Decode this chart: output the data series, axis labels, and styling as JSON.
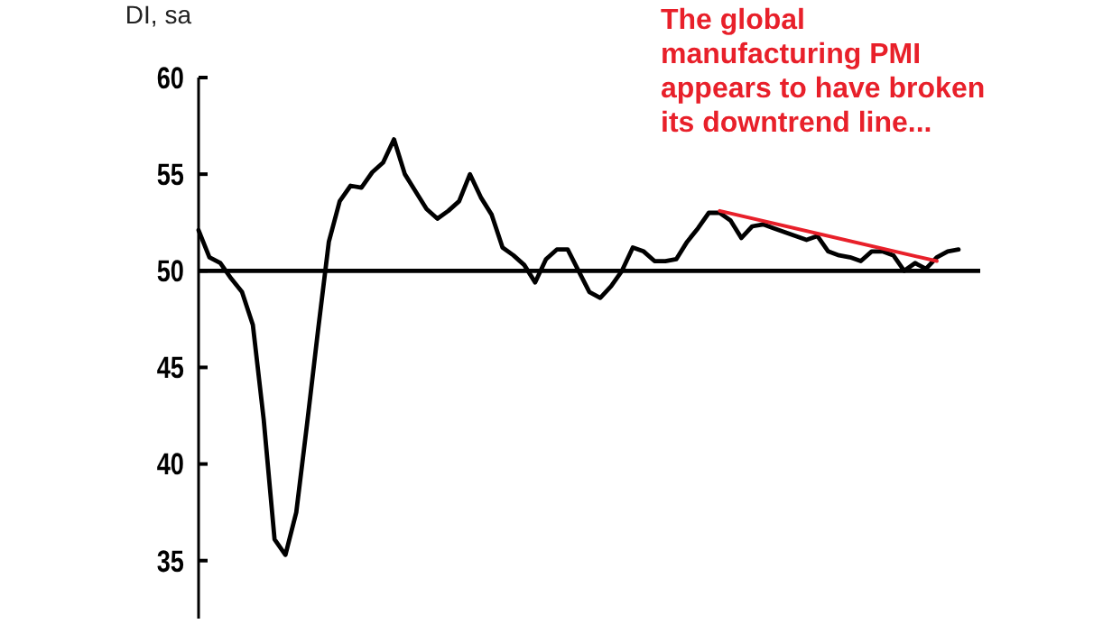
{
  "chart_data": {
    "type": "line",
    "ylabel": "DI, sa",
    "categories": [
      null,
      null,
      null,
      null,
      null,
      null,
      null,
      null,
      null,
      null,
      null,
      null,
      null,
      null,
      null,
      null,
      null,
      null,
      null,
      null,
      null,
      null,
      null,
      null,
      null,
      null,
      null,
      null,
      null,
      null,
      null,
      null,
      null,
      null,
      null,
      null,
      null,
      null,
      null,
      null,
      null,
      null,
      null,
      null,
      null,
      null,
      null,
      null,
      null,
      null,
      null,
      null,
      null,
      null,
      null,
      null,
      null,
      null,
      null,
      null,
      null,
      null,
      null,
      null,
      null,
      null,
      null,
      null,
      null,
      null,
      null,
      null,
      null
    ],
    "series": [
      {
        "color": "#000000",
        "values": [
          52.1,
          50.7,
          50.4,
          49.6,
          48.9,
          47.2,
          42.3,
          36.1,
          35.3,
          37.5,
          42.1,
          46.9,
          51.5,
          53.6,
          54.4,
          54.3,
          55.1,
          55.6,
          56.8,
          55,
          54.1,
          53.2,
          52.7,
          53.1,
          53.6,
          55,
          53.8,
          52.9,
          51.2,
          50.8,
          50.3,
          49.4,
          50.6,
          51.1,
          51.1,
          50,
          48.9,
          48.6,
          49.2,
          50,
          51.2,
          51,
          50.5,
          50.5,
          50.6,
          51.5,
          52.2,
          53,
          53,
          52.6,
          51.7,
          52.3,
          52.4,
          52.2,
          52,
          51.8,
          51.6,
          51.8,
          51,
          50.8,
          50.7,
          50.5,
          51,
          51,
          50.8,
          50,
          50.4,
          50.1,
          50.7,
          51,
          51.1,
          null,
          null
        ]
      },
      {
        "type": "line",
        "color": "#e8202a",
        "values": [
          null,
          null,
          null,
          null,
          null,
          null,
          null,
          null,
          null,
          null,
          null,
          null,
          null,
          null,
          null,
          null,
          null,
          null,
          null,
          null,
          null,
          null,
          null,
          null,
          null,
          null,
          null,
          null,
          null,
          null,
          null,
          null,
          null,
          null,
          null,
          null,
          null,
          null,
          null,
          null,
          null,
          null,
          null,
          null,
          null,
          null,
          null,
          null,
          53.1,
          null,
          null,
          null,
          null,
          null,
          null,
          null,
          null,
          null,
          null,
          null,
          null,
          null,
          null,
          null,
          null,
          null,
          null,
          null,
          50.5,
          null,
          null,
          null,
          null
        ]
      }
    ],
    "ylim": [
      32,
      60
    ],
    "yticks": [
      35,
      40,
      45,
      50,
      55,
      60
    ],
    "ref_lines": [
      {
        "axis": "y",
        "value": 50,
        "color": "#000000"
      }
    ],
    "annotations": [
      "The global manufacturing PMI appears to have broken its downtrend line..."
    ],
    "grid": false
  }
}
